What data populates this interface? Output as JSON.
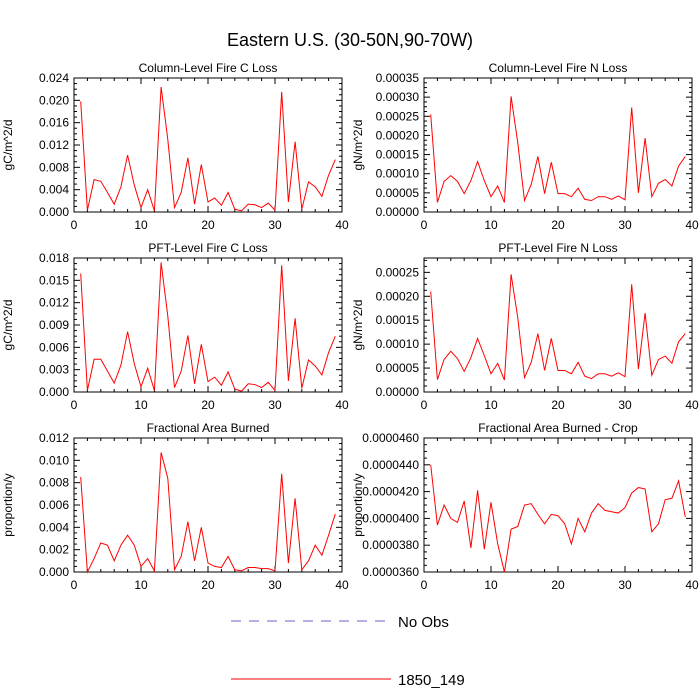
{
  "figure": {
    "title": "Eastern U.S. (30-50N,90-70W)"
  },
  "legend": {
    "items": [
      {
        "label": "No Obs",
        "color": "#6666cc",
        "dash": true
      },
      {
        "label": "1850_149",
        "color": "#ff0000",
        "dash": false
      }
    ]
  },
  "chart_data": [
    {
      "type": "line",
      "title": "Column-Level Fire C Loss",
      "ylabel": "gC/m^2/d",
      "xlim": [
        0,
        40
      ],
      "ylim": [
        0,
        0.024
      ],
      "xticks": [
        "0",
        "10",
        "20",
        "30",
        "40"
      ],
      "yticks": [
        "0.000",
        "0.004",
        "0.008",
        "0.012",
        "0.016",
        "0.020",
        "0.024"
      ],
      "x": [
        1,
        2,
        3,
        4,
        5,
        6,
        7,
        8,
        9,
        10,
        11,
        12,
        13,
        14,
        15,
        16,
        17,
        18,
        19,
        20,
        21,
        22,
        23,
        24,
        25,
        26,
        27,
        28,
        29,
        30,
        31,
        32,
        33,
        34,
        35,
        36,
        37,
        38,
        39
      ],
      "series": [
        {
          "name": "1850_149",
          "color": "#ff0000",
          "values": [
            0.0198,
            0.0003,
            0.0058,
            0.0055,
            0.0035,
            0.0014,
            0.0045,
            0.0102,
            0.0048,
            0.0008,
            0.004,
            0.0002,
            0.0224,
            0.013,
            0.0008,
            0.0035,
            0.0097,
            0.0014,
            0.0085,
            0.0018,
            0.0025,
            0.0012,
            0.0035,
            0.0005,
            0.0002,
            0.0014,
            0.0013,
            0.0008,
            0.0016,
            0.0003,
            0.0215,
            0.0018,
            0.0126,
            0.0005,
            0.0054,
            0.0045,
            0.0028,
            0.0066,
            0.0094
          ]
        }
      ]
    },
    {
      "type": "line",
      "title": "Column-Level Fire N Loss",
      "ylabel": "gN/m^2/d",
      "xlim": [
        0,
        40
      ],
      "ylim": [
        0,
        0.00035
      ],
      "xticks": [
        "0",
        "10",
        "20",
        "30",
        "40"
      ],
      "yticks": [
        "0.00000",
        "0.00005",
        "0.00010",
        "0.00015",
        "0.00020",
        "0.00025",
        "0.00030",
        "0.00035"
      ],
      "x": [
        1,
        2,
        3,
        4,
        5,
        6,
        7,
        8,
        9,
        10,
        11,
        12,
        13,
        14,
        15,
        16,
        17,
        18,
        19,
        20,
        21,
        22,
        23,
        24,
        25,
        26,
        27,
        28,
        29,
        30,
        31,
        32,
        33,
        34,
        35,
        36,
        37,
        38,
        39
      ],
      "series": [
        {
          "name": "1850_149",
          "color": "#ff0000",
          "values": [
            0.000255,
            2.5e-05,
            8e-05,
            9.5e-05,
            8e-05,
            4.8e-05,
            8.2e-05,
            0.000132,
            8.2e-05,
            4e-05,
            6.8e-05,
            2.5e-05,
            0.000302,
            0.00018,
            3e-05,
            7.2e-05,
            0.000145,
            4.8e-05,
            0.00013,
            4.8e-05,
            4.8e-05,
            4e-05,
            6.2e-05,
            3.3e-05,
            3e-05,
            4e-05,
            4e-05,
            3.3e-05,
            4.2e-05,
            3.2e-05,
            0.000273,
            5e-05,
            0.000193,
            4e-05,
            7.5e-05,
            8.5e-05,
            6.8e-05,
            0.00012,
            0.000145
          ]
        }
      ]
    },
    {
      "type": "line",
      "title": "PFT-Level Fire C Loss",
      "ylabel": "gC/m^2/d",
      "xlim": [
        0,
        40
      ],
      "ylim": [
        0,
        0.018
      ],
      "xticks": [
        "0",
        "10",
        "20",
        "30",
        "40"
      ],
      "yticks": [
        "0.000",
        "0.003",
        "0.006",
        "0.009",
        "0.012",
        "0.015",
        "0.018"
      ],
      "x": [
        1,
        2,
        3,
        4,
        5,
        6,
        7,
        8,
        9,
        10,
        11,
        12,
        13,
        14,
        15,
        16,
        17,
        18,
        19,
        20,
        21,
        22,
        23,
        24,
        25,
        26,
        27,
        28,
        29,
        30,
        31,
        32,
        33,
        34,
        35,
        36,
        37,
        38,
        39
      ],
      "series": [
        {
          "name": "1850_149",
          "color": "#ff0000",
          "values": [
            0.0159,
            0.0002,
            0.0044,
            0.0044,
            0.0028,
            0.0012,
            0.0036,
            0.0081,
            0.0038,
            0.0007,
            0.0032,
            0.0002,
            0.0174,
            0.0102,
            0.0006,
            0.0028,
            0.0076,
            0.0011,
            0.0064,
            0.0014,
            0.002,
            0.0009,
            0.0027,
            0.0004,
            0.0001,
            0.0011,
            0.001,
            0.0006,
            0.0013,
            0.0002,
            0.017,
            0.0015,
            0.0099,
            0.0005,
            0.0043,
            0.0035,
            0.0023,
            0.0053,
            0.0075
          ]
        }
      ]
    },
    {
      "type": "line",
      "title": "PFT-Level Fire N Loss",
      "ylabel": "gN/m^2/d",
      "xlim": [
        0,
        40
      ],
      "ylim": [
        0,
        0.00028
      ],
      "xticks": [
        "0",
        "10",
        "20",
        "30",
        "40"
      ],
      "yticks": [
        "0.00000",
        "0.00005",
        "0.00010",
        "0.00015",
        "0.00020",
        "0.00025"
      ],
      "x": [
        1,
        2,
        3,
        4,
        5,
        6,
        7,
        8,
        9,
        10,
        11,
        12,
        13,
        14,
        15,
        16,
        17,
        18,
        19,
        20,
        21,
        22,
        23,
        24,
        25,
        26,
        27,
        28,
        29,
        30,
        31,
        32,
        33,
        34,
        35,
        36,
        37,
        38,
        39
      ],
      "series": [
        {
          "name": "1850_149",
          "color": "#ff0000",
          "values": [
            0.00021,
            2.6e-05,
            6.8e-05,
            8.5e-05,
            7e-05,
            4.3e-05,
            7.2e-05,
            0.000112,
            7.6e-05,
            3.8e-05,
            6e-05,
            2.5e-05,
            0.000246,
            0.000155,
            3e-05,
            6.2e-05,
            0.000122,
            4.5e-05,
            0.000112,
            4.5e-05,
            4.5e-05,
            3.8e-05,
            6.2e-05,
            3.3e-05,
            2.8e-05,
            3.8e-05,
            3.8e-05,
            3.3e-05,
            4e-05,
            3.2e-05,
            0.000225,
            4.8e-05,
            0.000165,
            3.5e-05,
            6.8e-05,
            7.5e-05,
            6e-05,
            0.000105,
            0.000122
          ]
        }
      ]
    },
    {
      "type": "line",
      "title": "Fractional Area Burned",
      "ylabel": "proportion/y",
      "xlim": [
        0,
        40
      ],
      "ylim": [
        0,
        0.012
      ],
      "xticks": [
        "0",
        "10",
        "20",
        "30",
        "40"
      ],
      "yticks": [
        "0.000",
        "0.002",
        "0.004",
        "0.006",
        "0.008",
        "0.010",
        "0.012"
      ],
      "x": [
        1,
        2,
        3,
        4,
        5,
        6,
        7,
        8,
        9,
        10,
        11,
        12,
        13,
        14,
        15,
        16,
        17,
        18,
        19,
        20,
        21,
        22,
        23,
        24,
        25,
        26,
        27,
        28,
        29,
        30,
        31,
        32,
        33,
        34,
        35,
        36,
        37,
        38,
        39
      ],
      "series": [
        {
          "name": "1850_149",
          "color": "#ff0000",
          "values": [
            0.0085,
            0.0,
            0.0012,
            0.0026,
            0.0024,
            0.001,
            0.0024,
            0.0033,
            0.0024,
            0.0005,
            0.0012,
            0.0001,
            0.0107,
            0.0084,
            0.0002,
            0.0014,
            0.0045,
            0.001,
            0.004,
            0.0008,
            0.0005,
            0.0004,
            0.0014,
            0.0002,
            0.0001,
            0.0004,
            0.0004,
            0.0003,
            0.0003,
            0.0001,
            0.0088,
            0.0008,
            0.0066,
            0.0002,
            0.001,
            0.0024,
            0.0015,
            0.0033,
            0.0052
          ]
        }
      ]
    },
    {
      "type": "line",
      "title": "Fractional Area Burned - Crop",
      "ylabel": "proportion/y",
      "xlim": [
        0,
        40
      ],
      "ylim": [
        3.6e-05,
        4.6e-05
      ],
      "xticks": [
        "0",
        "10",
        "20",
        "30",
        "40"
      ],
      "yticks": [
        "0.0000360",
        "0.0000380",
        "0.0000400",
        "0.0000420",
        "0.0000440",
        "0.0000460"
      ],
      "x": [
        1,
        2,
        3,
        4,
        5,
        6,
        7,
        8,
        9,
        10,
        11,
        12,
        13,
        14,
        15,
        16,
        17,
        18,
        19,
        20,
        21,
        22,
        23,
        24,
        25,
        26,
        27,
        28,
        29,
        30,
        31,
        32,
        33,
        34,
        35,
        36,
        37,
        38,
        39
      ],
      "series": [
        {
          "name": "1850_149",
          "color": "#ff0000",
          "values": [
            4.4e-05,
            3.95e-05,
            4.1e-05,
            4e-05,
            3.97e-05,
            4.13e-05,
            3.78e-05,
            4.21e-05,
            3.77e-05,
            4.12e-05,
            3.81e-05,
            3.6e-05,
            3.92e-05,
            3.94e-05,
            4.1e-05,
            4.11e-05,
            4.03e-05,
            3.96e-05,
            4.03e-05,
            4.02e-05,
            3.96e-05,
            3.81e-05,
            4e-05,
            3.9e-05,
            4.04e-05,
            4.11e-05,
            4.06e-05,
            4.05e-05,
            4.04e-05,
            4.08e-05,
            4.19e-05,
            4.23e-05,
            4.22e-05,
            3.9e-05,
            3.96e-05,
            4.14e-05,
            4.15e-05,
            4.28e-05,
            4.01e-05
          ]
        }
      ]
    }
  ]
}
